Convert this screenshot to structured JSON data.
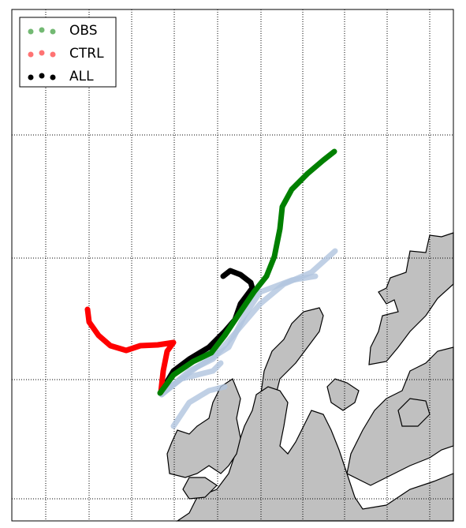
{
  "legend": {
    "entries": [
      {
        "label": "OBS",
        "color": "#008000"
      },
      {
        "label": "CTRL",
        "color": "#ff0000"
      },
      {
        "label": "ALL",
        "color": "#000000"
      }
    ]
  }
}
